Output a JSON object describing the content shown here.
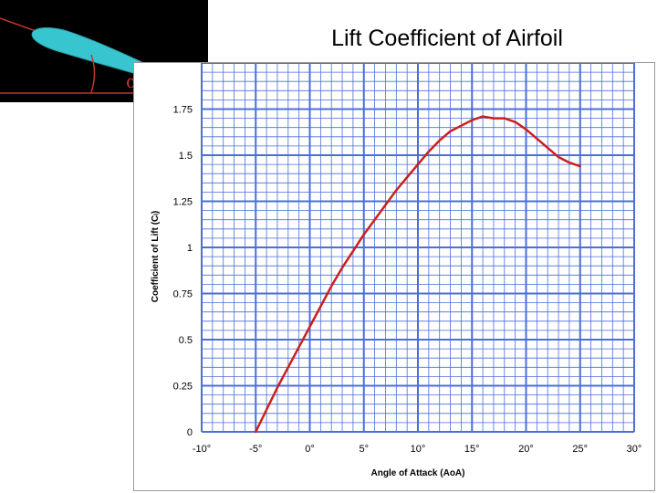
{
  "slide": {
    "title": "Lift Coefficient of Airfoil"
  },
  "inset": {
    "alpha_symbol": "α"
  },
  "colors": {
    "grid": "#4a6fd8",
    "curve": "#cc1f1f",
    "airfoil": "#37c6d0",
    "inset_lines": "#c0392b"
  },
  "chart_data": {
    "type": "line",
    "title": "",
    "xlabel": "Angle of Attack (AoA)",
    "ylabel": "Coefficient of Lift (Cₗ)",
    "xlim": [
      -10,
      30
    ],
    "ylim": [
      0,
      2
    ],
    "x_ticks": [
      -10,
      -5,
      0,
      5,
      10,
      15,
      20,
      25,
      30
    ],
    "x_tick_labels": [
      "-10°",
      "-5°",
      "0°",
      "5°",
      "10°",
      "15°",
      "20°",
      "25°",
      "30°"
    ],
    "y_ticks": [
      0,
      0.25,
      0.5,
      0.75,
      1,
      1.25,
      1.5,
      1.75
    ],
    "y_tick_labels": [
      "0",
      "0.25",
      "0.5",
      "0.75",
      "1",
      "1.25",
      "1.5",
      "1.75"
    ],
    "grid": true,
    "series": [
      {
        "x": [
          -5,
          -4,
          -3,
          -2,
          -1,
          0,
          1,
          2,
          3,
          4,
          5,
          6,
          7,
          8,
          9,
          10,
          11,
          12,
          13,
          14,
          15,
          16,
          17,
          18,
          19,
          20,
          21,
          22,
          23,
          24,
          25
        ],
        "y": [
          0.0,
          0.12,
          0.24,
          0.35,
          0.46,
          0.57,
          0.68,
          0.79,
          0.89,
          0.98,
          1.07,
          1.15,
          1.23,
          1.31,
          1.38,
          1.45,
          1.52,
          1.58,
          1.63,
          1.66,
          1.69,
          1.71,
          1.7,
          1.7,
          1.68,
          1.64,
          1.59,
          1.54,
          1.49,
          1.46,
          1.44
        ]
      }
    ]
  }
}
